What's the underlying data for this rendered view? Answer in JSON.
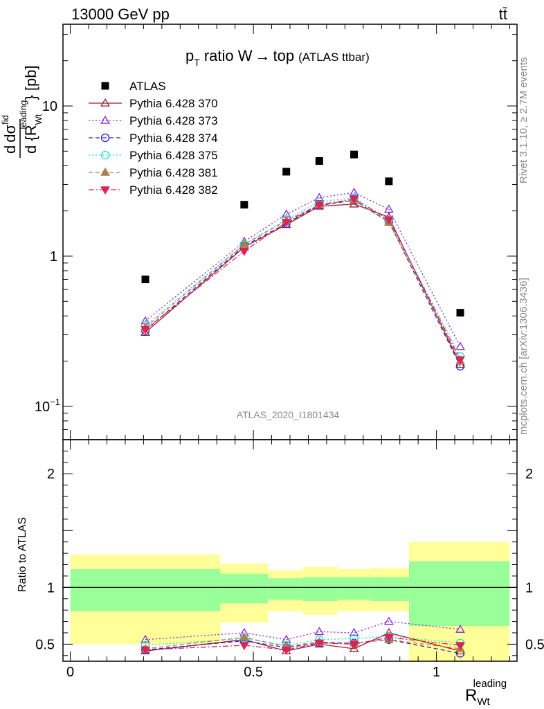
{
  "header": {
    "energy_label": "13000 GeV pp",
    "process_label": "tt̄"
  },
  "side_labels": {
    "rivet": "Rivet 3.1.10, ≥ 2.7M events",
    "mcplots": "mcplots.cern.ch [arXiv:1306.3436]"
  },
  "watermark": "ATLAS_2020_I1801434",
  "colors": {
    "data": "#000000",
    "yellow_band": "#ffff99",
    "green_band": "#99ff99"
  },
  "chart_data": [
    {
      "type": "scatter",
      "title": "p_T ratio W → top (ATLAS ttbar)",
      "title_parts": {
        "p": "p",
        "T": "T",
        "rest": "ratio W",
        "arrow": "→",
        "top": "top",
        "small": "(ATLAS ttbar)"
      },
      "ylabel_parts": {
        "d": "d",
        "sigma": "dσ",
        "sup": "fid",
        "d2": "d {R",
        "sub": "Wt",
        "sup2": "leading",
        "unit": "} [pb]"
      },
      "yscale": "log",
      "ylim": [
        0.06,
        35
      ],
      "xlim": [
        -0.02,
        1.22
      ],
      "y_ticks": [
        {
          "value": 0.1,
          "label": "10",
          "sup": "−1"
        },
        {
          "value": 1,
          "label": "1"
        },
        {
          "value": 10,
          "label": "10"
        }
      ],
      "x": [
        0.205,
        0.475,
        0.59,
        0.68,
        0.775,
        0.87,
        1.065
      ],
      "series": [
        {
          "name": "ATLAS",
          "color": "#000000",
          "marker": "square",
          "line": "none",
          "values": [
            0.7,
            2.2,
            3.65,
            4.3,
            4.75,
            3.15,
            0.42
          ]
        },
        {
          "name": "Pythia 6.428 370",
          "color": "#a01c2c",
          "marker": "triangle-open",
          "line": "solid",
          "values": [
            0.31,
            1.15,
            1.62,
            2.15,
            2.22,
            1.82,
            0.19
          ]
        },
        {
          "name": "Pythia 6.428 373",
          "color": "#8822dd",
          "marker": "triangle-open",
          "line": "dotted",
          "values": [
            0.37,
            1.25,
            1.9,
            2.45,
            2.65,
            2.05,
            0.25
          ]
        },
        {
          "name": "Pythia 6.428 374",
          "color": "#2222dd",
          "marker": "circle-open",
          "line": "dashed",
          "values": [
            0.32,
            1.17,
            1.65,
            2.18,
            2.35,
            1.7,
            0.185
          ]
        },
        {
          "name": "Pythia 6.428 375",
          "color": "#22ddcc",
          "marker": "circle-open",
          "line": "dotted",
          "values": [
            0.345,
            1.2,
            1.75,
            2.3,
            2.45,
            1.75,
            0.215
          ]
        },
        {
          "name": "Pythia 6.428 381",
          "color": "#b07d4a",
          "marker": "triangle-filled",
          "line": "dashed",
          "values": [
            0.335,
            1.2,
            1.72,
            2.2,
            2.35,
            1.68,
            0.2
          ]
        },
        {
          "name": "Pythia 6.428 382",
          "color": "#dd2255",
          "marker": "triangle-down-filled",
          "line": "dashdot",
          "values": [
            0.325,
            1.08,
            1.68,
            2.2,
            2.4,
            1.75,
            0.205
          ]
        }
      ]
    },
    {
      "type": "line",
      "ylabel": "Ratio to ATLAS",
      "xlabel_parts": {
        "R": "R",
        "sub": "Wt",
        "sup": "leading"
      },
      "ylim": [
        0.35,
        2.3
      ],
      "xlim": [
        -0.02,
        1.22
      ],
      "x_ticks": [
        {
          "value": 0,
          "label": "0"
        },
        {
          "value": 0.5,
          "label": "0.5"
        },
        {
          "value": 1,
          "label": "1"
        }
      ],
      "y_ticks": [
        {
          "value": 0.5,
          "label": "0.5"
        },
        {
          "value": 1,
          "label": "1"
        },
        {
          "value": 2,
          "label": "2"
        }
      ],
      "bands": [
        {
          "x": [
            0.0,
            0.41
          ],
          "green": [
            0.79,
            1.16
          ],
          "yellow": [
            0.5,
            1.29
          ]
        },
        {
          "x": [
            0.41,
            0.54
          ],
          "green": [
            0.86,
            1.12
          ],
          "yellow": [
            0.69,
            1.21
          ]
        },
        {
          "x": [
            0.54,
            0.635
          ],
          "green": [
            0.89,
            1.08
          ],
          "yellow": [
            0.79,
            1.15
          ]
        },
        {
          "x": [
            0.635,
            0.73
          ],
          "green": [
            0.88,
            1.09
          ],
          "yellow": [
            0.76,
            1.18
          ]
        },
        {
          "x": [
            0.73,
            0.82
          ],
          "green": [
            0.89,
            1.09
          ],
          "yellow": [
            0.79,
            1.16
          ]
        },
        {
          "x": [
            0.82,
            0.925
          ],
          "green": [
            0.88,
            1.09
          ],
          "yellow": [
            0.79,
            1.17
          ]
        },
        {
          "x": [
            0.925,
            1.2
          ],
          "green": [
            0.66,
            1.23
          ],
          "yellow": [
            0.34,
            1.4
          ]
        }
      ],
      "x": [
        0.205,
        0.475,
        0.59,
        0.68,
        0.775,
        0.87,
        1.065
      ],
      "series": [
        {
          "name": "Pythia 6.428 370",
          "color": "#a01c2c",
          "marker": "triangle-open",
          "line": "solid",
          "values": [
            0.44,
            0.54,
            0.44,
            0.5,
            0.46,
            0.6,
            0.44
          ]
        },
        {
          "name": "Pythia 6.428 373",
          "color": "#8822dd",
          "marker": "triangle-open",
          "line": "dotted",
          "values": [
            0.54,
            0.6,
            0.54,
            0.61,
            0.6,
            0.7,
            0.63
          ]
        },
        {
          "name": "Pythia 6.428 374",
          "color": "#2222dd",
          "marker": "circle-open",
          "line": "dashed",
          "values": [
            0.45,
            0.53,
            0.47,
            0.51,
            0.51,
            0.54,
            0.42
          ]
        },
        {
          "name": "Pythia 6.428 375",
          "color": "#22ddcc",
          "marker": "circle-open",
          "line": "dotted",
          "values": [
            0.49,
            0.55,
            0.49,
            0.54,
            0.55,
            0.57,
            0.51
          ]
        },
        {
          "name": "Pythia 6.428 381",
          "color": "#b07d4a",
          "marker": "triangle-filled",
          "line": "dashed",
          "values": [
            0.46,
            0.56,
            0.48,
            0.52,
            0.51,
            0.54,
            0.46
          ]
        },
        {
          "name": "Pythia 6.428 382",
          "color": "#dd2255",
          "marker": "triangle-down-filled",
          "line": "dashdot",
          "values": [
            0.45,
            0.49,
            0.45,
            0.51,
            0.5,
            0.56,
            0.49
          ]
        }
      ]
    }
  ]
}
